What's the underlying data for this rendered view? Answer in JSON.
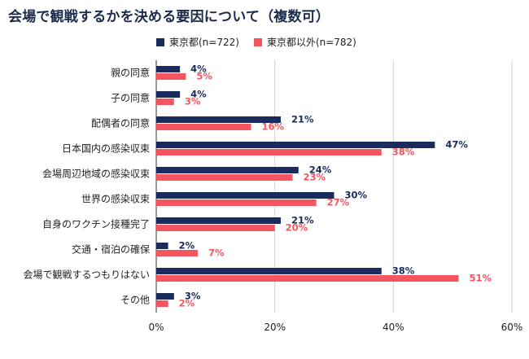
{
  "chart_data": {
    "type": "bar",
    "orientation": "horizontal",
    "title": "会場で観戦するかを決める要因について（複数可）",
    "categories": [
      "親の同意",
      "子の同意",
      "配偶者の同意",
      "日本国内の感染収束",
      "会場周辺地域の感染収束",
      "世界の感染収束",
      "自身のワクチン接種完了",
      "交通・宿泊の確保",
      "会場で観戦するつもりはない",
      "その他"
    ],
    "series": [
      {
        "name": "東京都(n=722)",
        "color": "#1a2b5e",
        "values": [
          4,
          4,
          21,
          47,
          24,
          30,
          21,
          2,
          38,
          3
        ]
      },
      {
        "name": "東京都以外(n=782)",
        "color": "#f4555f",
        "values": [
          5,
          3,
          16,
          38,
          23,
          27,
          20,
          7,
          51,
          2
        ]
      }
    ],
    "xlim": [
      0,
      60
    ],
    "xticks": [
      "0%",
      "20%",
      "40%",
      "60%"
    ],
    "grid": true,
    "legend_position": "top"
  }
}
